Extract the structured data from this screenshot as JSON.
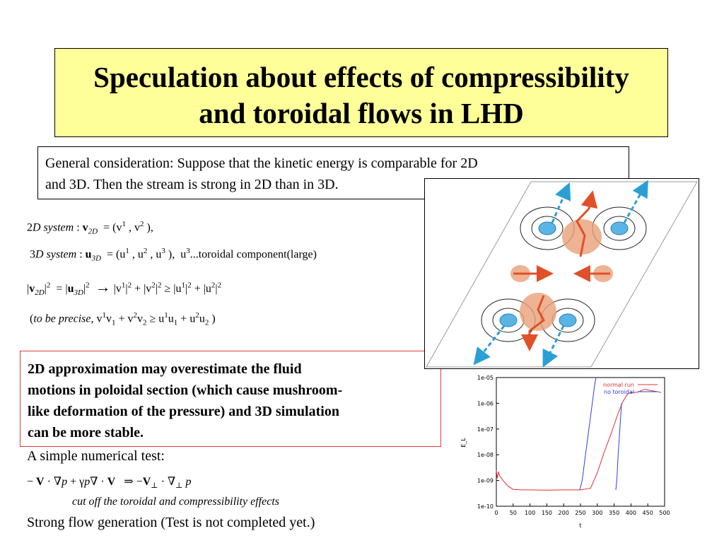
{
  "title": {
    "line1": "Speculation about effects of compressibility",
    "line2": "and toroidal flows in LHD"
  },
  "general": {
    "line1": "General consideration:  Suppose that the kinetic energy is comparable for 2D",
    "line2": "and 3D. Then the stream is strong in 2D than in 3D."
  },
  "equations": {
    "eq1_lhs": "2D system",
    "eq3_note": "...toroidal component(large)",
    "eq4_prefix": "to be precise"
  },
  "conclusion": {
    "line1": "2D approximation may overestimate the fluid",
    "line2": "motions in poloidal section (which cause mushroom-",
    "line3": "like deformation of the pressure) and 3D simulation",
    "line4": "can be more stable."
  },
  "test": {
    "heading": "A simple numerical test:",
    "cutoff_note": "cut off the toroidal and  compressibility effects",
    "strong_flow": "Strong flow generation (Test is not completed yet.)"
  },
  "colors": {
    "title_bg": "#ffff99",
    "conclusion_border": "#e03a3a",
    "normal_run": "#e03030",
    "no_toroidal": "#3040d0"
  },
  "chart_data": {
    "type": "line",
    "xlabel": "t",
    "ylabel": "E_L",
    "y_scale": "log",
    "xlim": [
      0,
      500
    ],
    "ylim": [
      1e-10,
      1e-05
    ],
    "x_ticks": [
      "0",
      "50",
      "100",
      "150",
      "200",
      "250",
      "300",
      "350",
      "400",
      "450",
      "500"
    ],
    "y_ticks": [
      "1e-10",
      "1e-09",
      "1e-08",
      "1e-07",
      "1e-06",
      "1e-05"
    ],
    "legend_position": "top-right",
    "series": [
      {
        "name": "normal run",
        "points": [
          [
            0,
            2.5e-09
          ],
          [
            3,
            1.2e-09
          ],
          [
            6,
            2.2e-09
          ],
          [
            10,
            1.5e-09
          ],
          [
            20,
            1e-09
          ],
          [
            35,
            6e-10
          ],
          [
            50,
            4.5e-10
          ],
          [
            75,
            4.3e-10
          ],
          [
            100,
            4.3e-10
          ],
          [
            150,
            4.2e-10
          ],
          [
            200,
            4.3e-10
          ],
          [
            250,
            4.3e-10
          ],
          [
            280,
            5e-10
          ],
          [
            300,
            2e-09
          ],
          [
            320,
            1.2e-08
          ],
          [
            340,
            6e-08
          ],
          [
            360,
            3.5e-07
          ],
          [
            375,
            1.1e-06
          ],
          [
            390,
            2.3e-06
          ],
          [
            400,
            2.6e-06
          ],
          [
            420,
            2.7e-06
          ],
          [
            440,
            3.5e-06
          ],
          [
            460,
            3.1e-06
          ],
          [
            480,
            2.8e-06
          ],
          [
            490,
            2.6e-06
          ]
        ]
      },
      {
        "name": "no toroidal",
        "points": [
          [
            248,
            4.3e-10
          ],
          [
            255,
            1e-09
          ],
          [
            265,
            1e-08
          ],
          [
            275,
            1e-07
          ],
          [
            285,
            1e-06
          ],
          [
            292,
            5e-06
          ],
          [
            296,
            1e-05
          ]
        ]
      },
      {
        "name": "",
        "points": [
          [
            355,
            4.3e-10
          ],
          [
            358,
            1e-09
          ],
          [
            362,
            1e-08
          ],
          [
            367,
            1e-07
          ],
          [
            372,
            1e-06
          ]
        ]
      }
    ]
  }
}
